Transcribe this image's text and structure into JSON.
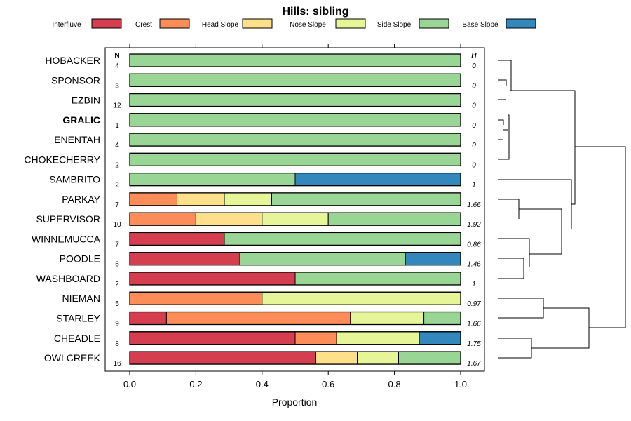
{
  "chart_data": {
    "type": "stacked-bar",
    "title": "Hills: sibling",
    "xlabel": "Proportion",
    "xlim": [
      0,
      1
    ],
    "xticks": [
      "0.0",
      "0.2",
      "0.4",
      "0.6",
      "0.8",
      "1.0"
    ],
    "n_header": "N",
    "h_header": "H",
    "highlight_row": "GRALIC",
    "legend": [
      {
        "name": "Interfluve",
        "color": "#d53e4f"
      },
      {
        "name": "Crest",
        "color": "#fc8d59"
      },
      {
        "name": "Head Slope",
        "color": "#fee08b"
      },
      {
        "name": "Nose Slope",
        "color": "#e6f598"
      },
      {
        "name": "Side Slope",
        "color": "#99d594"
      },
      {
        "name": "Base Slope",
        "color": "#3288bd"
      }
    ],
    "rows": [
      {
        "name": "HOBACKER",
        "n": "4",
        "h": "0",
        "values": [
          0,
          0,
          0,
          0,
          1,
          0
        ]
      },
      {
        "name": "SPONSOR",
        "n": "3",
        "h": "0",
        "values": [
          0,
          0,
          0,
          0,
          1,
          0
        ]
      },
      {
        "name": "EZBIN",
        "n": "12",
        "h": "0",
        "values": [
          0,
          0,
          0,
          0,
          1,
          0
        ]
      },
      {
        "name": "GRALIC",
        "n": "1",
        "h": "0",
        "values": [
          0,
          0,
          0,
          0,
          1,
          0
        ]
      },
      {
        "name": "ENENTAH",
        "n": "4",
        "h": "0",
        "values": [
          0,
          0,
          0,
          0,
          1,
          0
        ]
      },
      {
        "name": "CHOKECHERRY",
        "n": "2",
        "h": "0",
        "values": [
          0,
          0,
          0,
          0,
          1,
          0
        ]
      },
      {
        "name": "SAMBRITO",
        "n": "2",
        "h": "1",
        "values": [
          0,
          0,
          0,
          0,
          0.5,
          0.5
        ]
      },
      {
        "name": "PARKAY",
        "n": "7",
        "h": "1.66",
        "values": [
          0,
          0.143,
          0.143,
          0.143,
          0.571,
          0
        ]
      },
      {
        "name": "SUPERVISOR",
        "n": "10",
        "h": "1.92",
        "values": [
          0,
          0.2,
          0.2,
          0.2,
          0.4,
          0
        ]
      },
      {
        "name": "WINNEMUCCA",
        "n": "7",
        "h": "0.86",
        "values": [
          0.286,
          0,
          0,
          0,
          0.714,
          0
        ]
      },
      {
        "name": "POODLE",
        "n": "6",
        "h": "1.46",
        "values": [
          0.333,
          0,
          0,
          0,
          0.5,
          0.167
        ]
      },
      {
        "name": "WASHBOARD",
        "n": "2",
        "h": "1",
        "values": [
          0.5,
          0,
          0,
          0,
          0.5,
          0
        ]
      },
      {
        "name": "NIEMAN",
        "n": "5",
        "h": "0.97",
        "values": [
          0,
          0.4,
          0,
          0.6,
          0,
          0
        ]
      },
      {
        "name": "STARLEY",
        "n": "9",
        "h": "1.66",
        "values": [
          0.111,
          0.556,
          0,
          0.222,
          0.111,
          0
        ]
      },
      {
        "name": "CHEADLE",
        "n": "8",
        "h": "1.75",
        "values": [
          0.5,
          0.125,
          0,
          0.25,
          0,
          0.125
        ]
      },
      {
        "name": "OWLCREEK",
        "n": "16",
        "h": "1.67",
        "values": [
          0.5625,
          0,
          0.125,
          0.125,
          0.1875,
          0
        ]
      }
    ]
  }
}
